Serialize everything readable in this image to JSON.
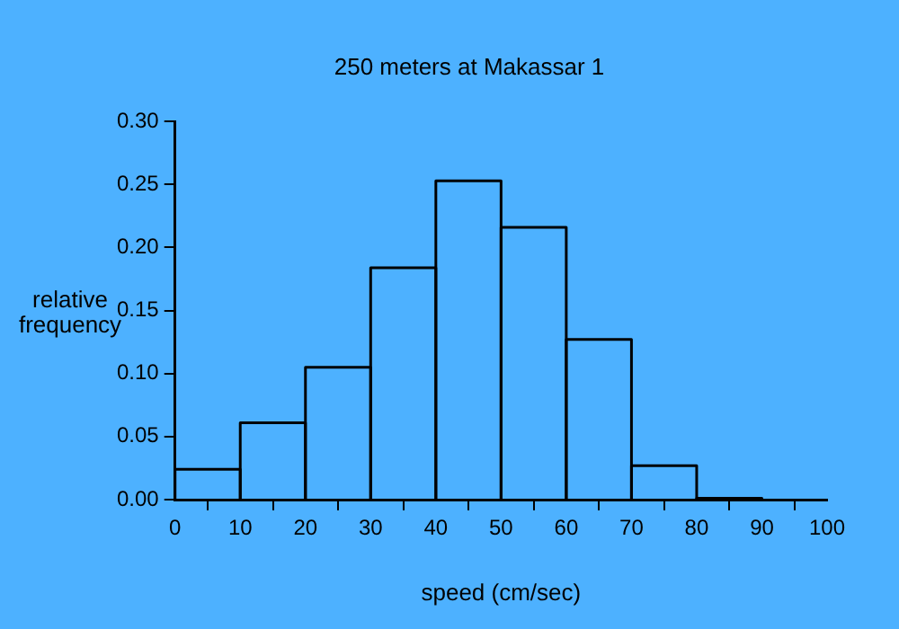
{
  "chart_data": {
    "type": "histogram",
    "title": "250 meters at Makassar 1",
    "xlabel": "speed (cm/sec)",
    "ylabel": "relative frequency",
    "bins": [
      0,
      10,
      20,
      30,
      40,
      50,
      60,
      70,
      80,
      90
    ],
    "values": [
      0.024,
      0.061,
      0.105,
      0.184,
      0.253,
      0.216,
      0.127,
      0.027,
      0.001
    ],
    "color": "#000000",
    "xlim": [
      0,
      100
    ],
    "xticks": [
      0,
      10,
      20,
      30,
      40,
      50,
      60,
      70,
      80,
      90,
      100
    ],
    "ylim": [
      0,
      0.3
    ],
    "yticks": [
      {
        "value": 0,
        "label": "0.00"
      },
      {
        "value": 0.05,
        "label": "0.05"
      },
      {
        "value": 0.1,
        "label": "0.10"
      },
      {
        "value": 0.15,
        "label": "0.15"
      },
      {
        "value": 0.2,
        "label": "0.20"
      },
      {
        "value": 0.25,
        "label": "0.25"
      },
      {
        "value": 0.3,
        "label": "0.30"
      }
    ],
    "grid": false,
    "legend": false
  }
}
